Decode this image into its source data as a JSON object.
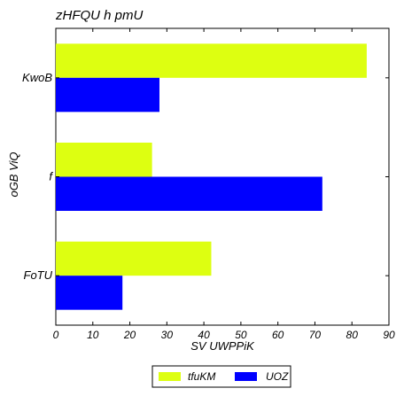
{
  "chart_data": {
    "type": "bar",
    "orientation": "horizontal",
    "title": "zHFQU h pmU",
    "xlabel": "SV  UWPPiK",
    "ylabel": "oGB ViQ",
    "categories": [
      "KwoB",
      "f",
      "FoTU"
    ],
    "xlim": [
      0,
      90
    ],
    "xticks": [
      0,
      10,
      20,
      30,
      40,
      50,
      60,
      70,
      80,
      90
    ],
    "grid": false,
    "legend_position": "bottom-center",
    "series": [
      {
        "name": "tfuKM",
        "color": "#ddff11",
        "values": [
          84,
          26,
          42
        ]
      },
      {
        "name": "UOZ",
        "color": "#0000ff",
        "values": [
          28,
          72,
          18
        ]
      }
    ]
  }
}
